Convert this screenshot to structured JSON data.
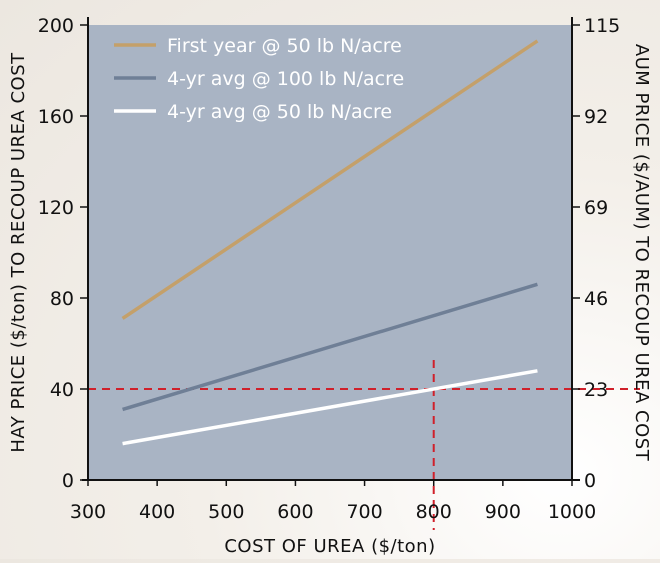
{
  "chart_data": {
    "type": "line",
    "xlabel": "COST OF UREA ($/ton)",
    "ylabel": "HAY PRICE ($/ton) TO RECOUP UREA COST",
    "y2label": "AUM PRICE ($/AUM) TO RECOUP UREA COST",
    "xlim": [
      300,
      1000
    ],
    "ylim": [
      0,
      200
    ],
    "y2lim": [
      0,
      115
    ],
    "x_ticks": [
      "300",
      "400",
      "500",
      "600",
      "700",
      "800",
      "900",
      "1000"
    ],
    "y_ticks": [
      "0",
      "40",
      "80",
      "120",
      "160",
      "200"
    ],
    "y2_ticks": [
      "0",
      "23",
      "46",
      "69",
      "92",
      "115"
    ],
    "grid": false,
    "legend_position": "top-left",
    "background_color": "#a9b4c4",
    "series": [
      {
        "name": "First year @ 50 lb N/acre",
        "color": "#c4a06a",
        "x": [
          350,
          950
        ],
        "y": [
          71,
          193
        ]
      },
      {
        "name": "4-yr avg @ 100 lb N/acre",
        "color": "#6f7f96",
        "x": [
          350,
          950
        ],
        "y": [
          31,
          86
        ]
      },
      {
        "name": "4-yr avg @ 50 lb N/acre",
        "color": "#ffffff",
        "x": [
          350,
          950
        ],
        "y": [
          16,
          48
        ]
      }
    ],
    "reference_lines": [
      {
        "orientation": "horizontal",
        "y": 40,
        "color": "#d0202a",
        "style": "dashed"
      },
      {
        "orientation": "vertical",
        "x": 800,
        "color": "#d0202a",
        "style": "dashed"
      }
    ]
  }
}
